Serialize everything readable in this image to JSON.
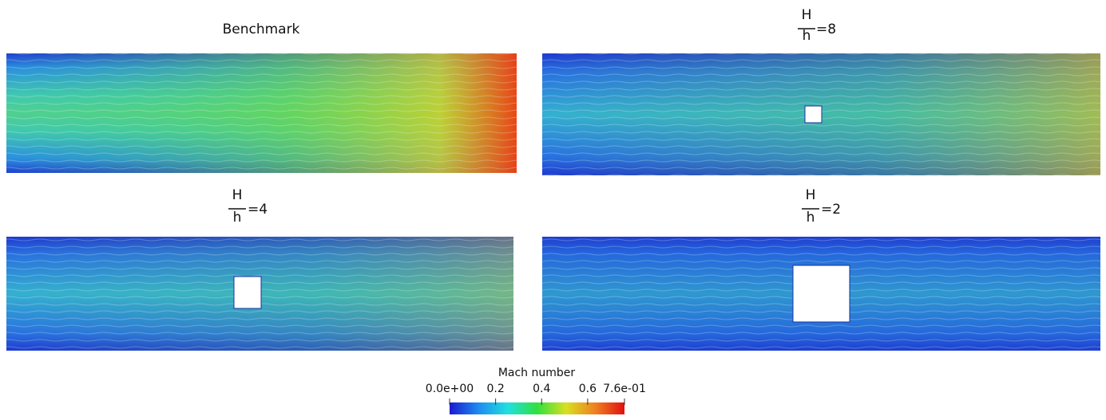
{
  "panels": [
    {
      "title": "Benchmark"
    },
    {
      "numerator": "H",
      "denominator": "h",
      "value": "=8"
    },
    {
      "numerator": "H",
      "denominator": "h",
      "value": "=4"
    },
    {
      "numerator": "H",
      "denominator": "h",
      "value": "=2"
    }
  ],
  "colorbar": {
    "title": "Mach number",
    "lim": [
      0,
      0.76
    ],
    "ticks": [
      {
        "value": 0,
        "label": "0.0e+00"
      },
      0.2,
      0.4,
      0.6,
      {
        "value": 0.76,
        "label": "7.6e-01"
      }
    ],
    "colors": [
      "#1a1ad0",
      "#1e8cf0",
      "#20e0e0",
      "#30e040",
      "#d8e020",
      "#f08020",
      "#e01010"
    ]
  }
}
